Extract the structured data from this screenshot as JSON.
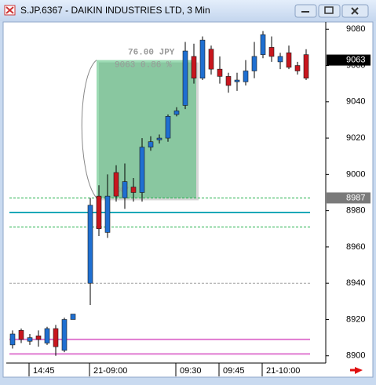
{
  "window_title": "S.JP.6367 - DAIKIN INDUSTRIES LTD, 3 Min",
  "chart_data": {
    "type": "candlestick",
    "categories": [
      null,
      null,
      "14:45",
      null,
      null,
      null,
      null,
      null,
      null,
      "21-09:00",
      null,
      null,
      null,
      null,
      null,
      null,
      null,
      null,
      null,
      "09:30",
      null,
      null,
      null,
      null,
      "09:45",
      null,
      null,
      null,
      null,
      "21-10:00",
      null,
      null,
      null,
      null,
      null
    ],
    "open": [
      8906,
      8914,
      8908,
      8911,
      8907,
      8915,
      8903,
      8920,
      null,
      8940,
      8988,
      8968,
      9001,
      8987,
      8993,
      8990,
      9015,
      9019,
      9020,
      9033,
      9038,
      9065,
      9053,
      9069,
      9058,
      9054,
      9051,
      9051,
      9057,
      9066,
      9070,
      9062,
      9067,
      9060,
      9066
    ],
    "high": [
      8914,
      8915,
      8912,
      8914,
      8916,
      8917,
      8921,
      8923,
      null,
      8987,
      8994,
      9000,
      9005,
      9006,
      8998,
      9020,
      9021,
      9022,
      9033,
      9037,
      9073,
      9072,
      9076,
      9071,
      9065,
      9056,
      9056,
      9063,
      9073,
      9079,
      9076,
      9067,
      9071,
      9062,
      9069
    ],
    "low": [
      8904,
      8907,
      8906,
      8905,
      8906,
      8900,
      8902,
      8920,
      null,
      8928,
      8966,
      8965,
      8985,
      8981,
      8985,
      8985,
      9013,
      9017,
      9018,
      9032,
      9036,
      9050,
      9052,
      9055,
      9050,
      9045,
      9046,
      9049,
      9053,
      9064,
      9062,
      9058,
      9058,
      9055,
      9052
    ],
    "close": [
      8912,
      8909,
      8910,
      8909,
      8915,
      8905,
      8920,
      8923,
      null,
      8983,
      8970,
      8988,
      8988,
      8996,
      8990,
      9015,
      9018,
      9020,
      9032,
      9035,
      9068,
      9053,
      9074,
      9058,
      9054,
      9049,
      9052,
      9057,
      9065,
      9077,
      9065,
      9065,
      9059,
      9057,
      9053
    ],
    "up_color": "#1f6fd1",
    "down_color": "#c8161e",
    "ylim": [
      8896,
      9084
    ],
    "yticks": [
      8900,
      8920,
      8940,
      8960,
      8980,
      9000,
      9020,
      9040,
      9060,
      9080
    ],
    "price_labels": [
      {
        "value": 9063,
        "color": "#000000"
      },
      {
        "value": 8987,
        "color": "#7a7a7a"
      }
    ],
    "levels": [
      {
        "value": 8987,
        "color": "#22b04a",
        "dash": true
      },
      {
        "value": 8979,
        "color": "#1aa8b8",
        "dash": false
      },
      {
        "value": 8971,
        "color": "#22b04a",
        "dash": true
      },
      {
        "value": 8940,
        "color": "#a0a0a0",
        "dash": true
      },
      {
        "value": 8909,
        "color": "#e07ad0",
        "dash": false
      },
      {
        "value": 8901,
        "color": "#e07ad0",
        "dash": false
      }
    ],
    "box": {
      "top": 9063,
      "bottom": 8987,
      "color": "#3cb86a",
      "text": "76.00  JPY",
      "subtext": "9063   0.86 %",
      "label": "8987"
    }
  }
}
